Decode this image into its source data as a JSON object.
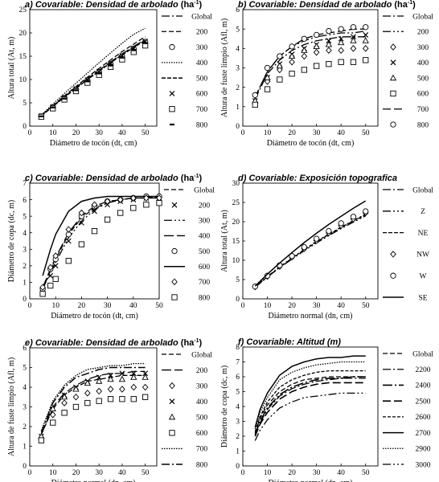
{
  "chart_data": [
    {
      "panel_letter": "a)",
      "title": "Covariable:  Densidad de arbolado",
      "title_unit": "(ha",
      "title_unit_sup": "-1",
      "title_unit_close": ")",
      "type": "line",
      "xlabel": "Diámetro de tocón (dt, cm)",
      "ylabel": "Altura total (At, m)",
      "xlim": [
        0,
        55
      ],
      "ylim": [
        0,
        25
      ],
      "xticks": [
        0,
        10,
        20,
        30,
        40,
        50
      ],
      "yticks": [
        0,
        5,
        10,
        15,
        20,
        25
      ],
      "legend_position": "right",
      "x": [
        5,
        10,
        15,
        20,
        25,
        30,
        35,
        40,
        45,
        50
      ],
      "series": [
        {
          "name": "Global",
          "kind": "line",
          "dash": "10,3,2,3",
          "width": 1.3,
          "values": [
            2.3,
            4.3,
            6.3,
            8.3,
            10.2,
            12.0,
            13.8,
            15.5,
            17.1,
            18.6
          ]
        },
        {
          "name": "200",
          "kind": "line",
          "dash": "6,3",
          "width": 1.3,
          "values": [
            2.3,
            4.4,
            6.5,
            8.5,
            10.5,
            12.4,
            14.2,
            16.0,
            17.6,
            19.2
          ]
        },
        {
          "name": "300",
          "kind": "marker",
          "marker": "circle",
          "values": [
            2.1,
            4.0,
            6.0,
            7.9,
            9.8,
            11.6,
            13.3,
            15.0,
            16.6,
            18.1
          ]
        },
        {
          "name": "400",
          "kind": "line",
          "dash": "1.5,1.5",
          "width": 1.3,
          "values": [
            2.4,
            4.7,
            7.0,
            9.2,
            11.4,
            13.6,
            15.7,
            17.8,
            19.7,
            21.0
          ]
        },
        {
          "name": "500",
          "kind": "line",
          "dash": "5,2",
          "width": 1.5,
          "values": [
            2.2,
            4.2,
            6.2,
            8.1,
            10.0,
            11.8,
            13.6,
            15.3,
            16.9,
            18.4
          ]
        },
        {
          "name": "600",
          "kind": "marker",
          "marker": "cross",
          "values": [
            2.2,
            4.1,
            6.1,
            8.0,
            9.9,
            11.7,
            13.4,
            15.1,
            16.7,
            18.2
          ]
        },
        {
          "name": "700",
          "kind": "marker",
          "marker": "square",
          "values": [
            2.0,
            3.8,
            5.7,
            7.5,
            9.3,
            11.0,
            12.7,
            14.3,
            15.9,
            17.3
          ]
        },
        {
          "name": "800",
          "kind": "marker",
          "marker": "dash",
          "values": [
            2.1,
            4.0,
            5.9,
            7.7,
            9.6,
            11.3,
            13.0,
            14.7,
            16.3,
            17.8
          ]
        }
      ]
    },
    {
      "panel_letter": "b)",
      "title": "Covariable:  Densidad de arbolado",
      "title_unit": "(ha",
      "title_unit_sup": "-1",
      "title_unit_close": ")",
      "type": "line",
      "xlabel": "Diámetro de tocón (dt, cm)",
      "ylabel": "Altura de fuste limpio (Afl, m)",
      "xlim": [
        0,
        55
      ],
      "ylim": [
        0,
        6
      ],
      "xticks": [
        0,
        10,
        20,
        30,
        40,
        50
      ],
      "yticks": [
        0,
        1,
        2,
        3,
        4,
        5,
        6
      ],
      "legend_position": "right",
      "x": [
        5,
        10,
        15,
        20,
        25,
        30,
        35,
        40,
        45,
        50
      ],
      "series": [
        {
          "name": "Global",
          "kind": "line",
          "dash": "10,3,2,3",
          "width": 1.3,
          "values": [
            1.4,
            2.7,
            3.4,
            3.9,
            4.2,
            4.4,
            4.5,
            4.6,
            4.6,
            4.6
          ]
        },
        {
          "name": "200",
          "kind": "line",
          "dash": "10,3,2,3,2,3",
          "width": 1.3,
          "values": [
            1.5,
            2.8,
            3.6,
            4.1,
            4.4,
            4.6,
            4.7,
            4.8,
            4.8,
            4.9
          ]
        },
        {
          "name": "300",
          "kind": "marker",
          "marker": "diamond",
          "values": [
            1.2,
            2.3,
            2.9,
            3.3,
            3.6,
            3.8,
            3.9,
            3.9,
            4.0,
            4.0
          ]
        },
        {
          "name": "400",
          "kind": "marker",
          "marker": "cross",
          "values": [
            1.3,
            2.5,
            3.2,
            3.7,
            4.0,
            4.2,
            4.4,
            4.5,
            4.6,
            4.7
          ]
        },
        {
          "name": "500",
          "kind": "marker",
          "marker": "triangle",
          "values": [
            1.3,
            2.5,
            3.1,
            3.6,
            3.9,
            4.1,
            4.2,
            4.3,
            4.4,
            4.4
          ]
        },
        {
          "name": "600",
          "kind": "marker",
          "marker": "square",
          "values": [
            1.1,
            1.9,
            2.4,
            2.7,
            2.9,
            3.1,
            3.2,
            3.3,
            3.3,
            3.4
          ]
        },
        {
          "name": "700",
          "kind": "line",
          "dash": "10,4",
          "width": 1.3,
          "values": [
            1.5,
            2.8,
            3.6,
            4.1,
            4.5,
            4.7,
            4.8,
            4.9,
            5.0,
            5.0
          ]
        },
        {
          "name": "800",
          "kind": "marker",
          "marker": "circle",
          "values": [
            1.6,
            3.0,
            3.6,
            4.1,
            4.5,
            4.7,
            4.9,
            5.0,
            5.1,
            5.1
          ]
        }
      ]
    },
    {
      "panel_letter": "c)",
      "title": "Covariable:  Densidad de arbolado",
      "title_unit": "(ha",
      "title_unit_sup": "-1",
      "title_unit_close": ")",
      "type": "line",
      "xlabel": "Diámetro de tocón (dt, cm)",
      "ylabel": "Diámetro de copa (dc, m)",
      "xlim": [
        0,
        50
      ],
      "ylim": [
        0,
        7
      ],
      "xticks": [
        0,
        10,
        20,
        30,
        40,
        50
      ],
      "yticks": [
        0,
        1,
        2,
        3,
        4,
        5,
        6,
        7
      ],
      "legend_position": "right",
      "x": [
        5,
        8,
        10,
        15,
        20,
        25,
        30,
        35,
        40,
        45,
        50
      ],
      "series": [
        {
          "name": "Global",
          "kind": "line",
          "dash": "6,3",
          "width": 1.3,
          "values": [
            0.6,
            1.7,
            2.4,
            3.9,
            4.9,
            5.5,
            5.8,
            6.0,
            6.1,
            6.1,
            6.1
          ]
        },
        {
          "name": "200",
          "kind": "marker",
          "marker": "cross",
          "values": [
            0.5,
            1.4,
            2.0,
            3.5,
            4.6,
            5.3,
            5.7,
            5.9,
            6.0,
            6.1,
            6.1
          ]
        },
        {
          "name": "300",
          "kind": "line",
          "dash": "10,3,2,3,2,3",
          "width": 1.3,
          "values": [
            0.6,
            1.6,
            2.2,
            3.7,
            4.7,
            5.4,
            5.8,
            6.0,
            6.1,
            6.1,
            6.2
          ]
        },
        {
          "name": "400",
          "kind": "line",
          "dash": "12,4",
          "width": 1.3,
          "values": [
            0.7,
            1.8,
            2.5,
            4.0,
            5.0,
            5.6,
            5.9,
            6.0,
            6.1,
            6.1,
            6.1
          ]
        },
        {
          "name": "500",
          "kind": "marker",
          "marker": "circle",
          "values": [
            0.6,
            1.8,
            2.4,
            3.9,
            5.0,
            5.6,
            5.9,
            6.0,
            6.1,
            6.2,
            6.2
          ]
        },
        {
          "name": "600",
          "kind": "line",
          "dash": "",
          "width": 1.5,
          "values": [
            1.4,
            3.0,
            3.9,
            5.3,
            5.9,
            6.1,
            6.2,
            6.2,
            6.2,
            6.2,
            6.2
          ]
        },
        {
          "name": "700",
          "kind": "marker",
          "marker": "diamond",
          "values": [
            0.7,
            1.9,
            2.6,
            4.2,
            5.2,
            5.7,
            5.9,
            6.0,
            6.1,
            6.1,
            6.1
          ]
        },
        {
          "name": "800",
          "kind": "marker",
          "marker": "square",
          "values": [
            0.3,
            0.8,
            1.2,
            2.3,
            3.3,
            4.1,
            4.8,
            5.2,
            5.5,
            5.7,
            5.8
          ]
        }
      ]
    },
    {
      "panel_letter": "d)",
      "title": "Covariable: Exposición topografica",
      "title_unit": "",
      "title_unit_sup": "",
      "title_unit_close": "",
      "type": "line",
      "xlabel": "Diámetro normal (dn, cm)",
      "ylabel": "Altura total (At, m)",
      "xlim": [
        0,
        55
      ],
      "ylim": [
        0,
        30
      ],
      "xticks": [
        0,
        10,
        20,
        30,
        40,
        50
      ],
      "yticks": [
        0,
        5,
        10,
        15,
        20,
        25,
        30
      ],
      "legend_position": "right",
      "x": [
        5,
        10,
        15,
        20,
        25,
        30,
        35,
        40,
        45,
        50
      ],
      "series": [
        {
          "name": "Global",
          "kind": "line",
          "dash": "10,3,2,3",
          "width": 1.3,
          "values": [
            3.1,
            5.8,
            8.3,
            10.6,
            12.8,
            14.9,
            16.8,
            18.6,
            20.3,
            22.0
          ]
        },
        {
          "name": "Z",
          "kind": "line",
          "dash": "10,3,2,3,2,3",
          "width": 1.3,
          "values": [
            3.0,
            5.6,
            8.1,
            10.3,
            12.5,
            14.5,
            16.4,
            18.2,
            19.9,
            21.5
          ]
        },
        {
          "name": "NE",
          "kind": "line",
          "dash": "5,2",
          "width": 1.3,
          "values": [
            3.1,
            5.7,
            8.2,
            10.5,
            12.7,
            14.7,
            16.7,
            18.5,
            20.2,
            21.8
          ]
        },
        {
          "name": "NW",
          "kind": "marker",
          "marker": "diamond",
          "values": [
            3.1,
            5.8,
            8.4,
            10.8,
            13.0,
            15.1,
            17.1,
            19.0,
            20.7,
            22.3
          ]
        },
        {
          "name": "W",
          "kind": "marker",
          "marker": "circle",
          "values": [
            3.2,
            6.0,
            8.7,
            11.1,
            13.4,
            15.6,
            17.6,
            19.6,
            21.3,
            22.7
          ]
        },
        {
          "name": "SE",
          "kind": "line",
          "dash": "",
          "width": 1.5,
          "values": [
            3.3,
            6.4,
            9.3,
            12.0,
            14.6,
            17.0,
            19.3,
            21.4,
            23.5,
            25.4
          ]
        }
      ]
    },
    {
      "panel_letter": "e)",
      "title": "Covariable:  Densidad de arbolado",
      "title_unit": "(ha",
      "title_unit_sup": "-1",
      "title_unit_close": ")",
      "type": "line",
      "xlabel": "Diámetro normal (dn, cm)",
      "ylabel": "Altura de fuste limpio (Afl, m)",
      "xlim": [
        0,
        55
      ],
      "ylim": [
        0,
        6
      ],
      "xticks": [
        0,
        10,
        20,
        30,
        40,
        50
      ],
      "yticks": [
        0,
        1,
        2,
        3,
        4,
        5,
        6
      ],
      "legend_position": "right",
      "x": [
        5,
        10,
        15,
        20,
        25,
        30,
        35,
        40,
        45,
        50
      ],
      "series": [
        {
          "name": "Global",
          "kind": "line",
          "dash": "6,3",
          "width": 1.3,
          "values": [
            1.6,
            2.9,
            3.6,
            4.0,
            4.3,
            4.4,
            4.5,
            4.6,
            4.6,
            4.6
          ]
        },
        {
          "name": "200",
          "kind": "line",
          "dash": "12,4",
          "width": 1.3,
          "values": [
            1.6,
            3.0,
            3.7,
            4.1,
            4.4,
            4.6,
            4.7,
            4.7,
            4.8,
            4.8
          ]
        },
        {
          "name": "300",
          "kind": "marker",
          "marker": "diamond",
          "values": [
            1.4,
            2.6,
            3.2,
            3.5,
            3.7,
            3.8,
            3.9,
            3.9,
            4.0,
            4.0
          ]
        },
        {
          "name": "400",
          "kind": "marker",
          "marker": "cross",
          "values": [
            1.5,
            2.9,
            3.6,
            4.0,
            4.3,
            4.5,
            4.6,
            4.7,
            4.7,
            4.7
          ]
        },
        {
          "name": "500",
          "kind": "marker",
          "marker": "triangle",
          "values": [
            1.5,
            2.9,
            3.5,
            3.9,
            4.2,
            4.3,
            4.4,
            4.4,
            4.5,
            4.5
          ]
        },
        {
          "name": "600",
          "kind": "marker",
          "marker": "square",
          "values": [
            1.3,
            2.2,
            2.7,
            3.0,
            3.2,
            3.3,
            3.4,
            3.4,
            3.4,
            3.5
          ]
        },
        {
          "name": "700",
          "kind": "line",
          "dash": "1.5,1.5",
          "width": 1.4,
          "values": [
            1.8,
            3.3,
            4.1,
            4.6,
            4.9,
            5.0,
            5.1,
            5.1,
            5.2,
            5.2
          ]
        },
        {
          "name": "800",
          "kind": "line",
          "dash": "10,3,2,3",
          "width": 1.5,
          "values": [
            1.7,
            3.2,
            4.0,
            4.5,
            4.7,
            4.9,
            5.0,
            5.0,
            5.0,
            5.0
          ]
        }
      ]
    },
    {
      "panel_letter": "f)",
      "title": "Covariable: Altitud (m)",
      "title_unit": "",
      "title_unit_sup": "",
      "title_unit_close": "",
      "type": "line",
      "xlabel": "Diámetro normal (dn, cm)",
      "ylabel": "Diámetro de copa (dc, m)",
      "xlim": [
        0,
        55
      ],
      "ylim": [
        0,
        8
      ],
      "xticks": [
        0,
        10,
        20,
        30,
        40,
        50
      ],
      "yticks": [
        0,
        1,
        2,
        3,
        4,
        5,
        6,
        7,
        8
      ],
      "legend_position": "right",
      "x": [
        5,
        7,
        10,
        15,
        20,
        25,
        30,
        35,
        40,
        45,
        50
      ],
      "series": [
        {
          "name": "Global",
          "kind": "line",
          "dash": "6,3",
          "width": 1.3,
          "values": [
            2.2,
            3.2,
            4.1,
            5.0,
            5.5,
            5.8,
            5.9,
            6.0,
            6.0,
            6.0,
            6.0
          ]
        },
        {
          "name": "2200",
          "kind": "line",
          "dash": "10,3,2,3",
          "width": 1.3,
          "values": [
            2.0,
            2.9,
            3.8,
            4.7,
            5.2,
            5.5,
            5.7,
            5.8,
            5.9,
            5.9,
            5.9
          ]
        },
        {
          "name": "2400",
          "kind": "line",
          "dash": "12,3,2,3",
          "width": 1.6,
          "values": [
            2.1,
            3.0,
            3.9,
            4.8,
            5.3,
            5.6,
            5.8,
            5.9,
            5.9,
            6.0,
            6.0
          ]
        },
        {
          "name": "2500",
          "kind": "line",
          "dash": "10,4",
          "width": 1.6,
          "values": [
            2.0,
            2.8,
            3.6,
            4.5,
            5.0,
            5.3,
            5.5,
            5.6,
            5.6,
            5.6,
            5.6
          ]
        },
        {
          "name": "2600",
          "kind": "line",
          "dash": "4,2",
          "width": 1.3,
          "values": [
            2.3,
            3.3,
            4.3,
            5.3,
            5.8,
            6.1,
            6.3,
            6.4,
            6.4,
            6.4,
            6.4
          ]
        },
        {
          "name": "2700",
          "kind": "line",
          "dash": "",
          "width": 1.5,
          "values": [
            2.6,
            3.8,
            4.9,
            6.1,
            6.7,
            7.0,
            7.2,
            7.3,
            7.3,
            7.4,
            7.4
          ]
        },
        {
          "name": "2900",
          "kind": "line",
          "dash": "1.5,1.5",
          "width": 1.3,
          "values": [
            2.5,
            3.6,
            4.6,
            5.8,
            6.3,
            6.6,
            6.8,
            6.9,
            7.0,
            7.0,
            7.0
          ]
        },
        {
          "name": "3000",
          "kind": "line",
          "dash": "10,3,2,3,2,3",
          "width": 1.3,
          "values": [
            1.7,
            2.4,
            3.1,
            3.9,
            4.3,
            4.6,
            4.7,
            4.8,
            4.9,
            4.9,
            4.9
          ]
        }
      ]
    }
  ]
}
